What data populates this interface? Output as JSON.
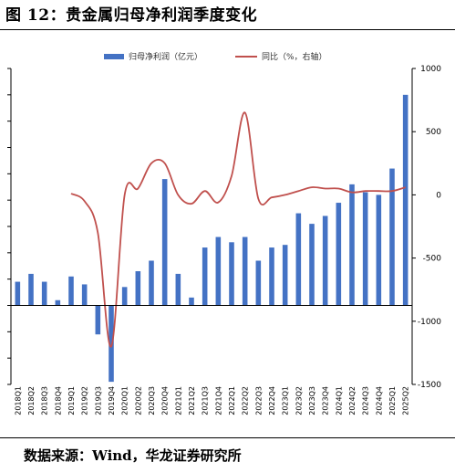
{
  "page": {
    "title": "图 12：贵金属归母净利润季度变化",
    "source": "数据来源：Wind，华龙证券研究所"
  },
  "chart_data": {
    "type": "bar",
    "categories": [
      "2018Q1",
      "2018Q2",
      "2018Q3",
      "2018Q4",
      "2019Q1",
      "2019Q2",
      "2019Q3",
      "2019Q4",
      "2020Q1",
      "2020Q2",
      "2020Q3",
      "2020Q4",
      "2021Q1",
      "2021Q2",
      "2021Q3",
      "2021Q4",
      "2022Q1",
      "2022Q2",
      "2022Q3",
      "2022Q4",
      "2023Q1",
      "2023Q2",
      "2023Q3",
      "2023Q4",
      "2024Q1",
      "2024Q2",
      "2024Q3",
      "2024Q4",
      "2025Q1",
      "2025Q2"
    ],
    "series": [
      {
        "name": "归母净利润（亿元）",
        "kind": "bar",
        "axis": "left",
        "color": "#4472C4",
        "values": [
          9,
          12,
          9,
          2,
          11,
          8,
          -11,
          -29,
          7,
          13,
          17,
          48,
          12,
          3,
          22,
          26,
          24,
          26,
          17,
          22,
          23,
          35,
          31,
          34,
          39,
          46,
          43,
          42,
          52,
          80
        ]
      },
      {
        "name": "同比（%，右轴）",
        "kind": "line",
        "axis": "right",
        "color": "#C0504D",
        "values": [
          null,
          null,
          null,
          null,
          10,
          -50,
          -300,
          -1200,
          0,
          50,
          250,
          250,
          0,
          -70,
          30,
          -60,
          150,
          650,
          -30,
          -20,
          0,
          30,
          60,
          50,
          50,
          20,
          30,
          30,
          30,
          60
        ]
      }
    ],
    "left_axis": {
      "min": -30,
      "max": 90,
      "ticks": [
        -30,
        -20,
        -10,
        0,
        10,
        20,
        30,
        40,
        50,
        60,
        70,
        80,
        90
      ]
    },
    "right_axis": {
      "min": -1500,
      "max": 1000,
      "ticks": [
        -1500,
        -1000,
        -500,
        0,
        500,
        1000
      ]
    },
    "legend_position": "top"
  }
}
